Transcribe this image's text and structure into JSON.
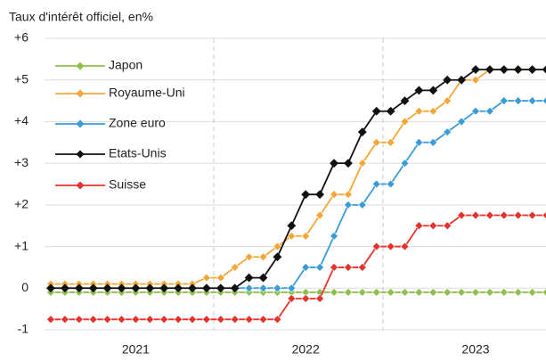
{
  "chart_data": {
    "type": "line",
    "title": "Taux d'intérêt officiel, en%",
    "categories": [
      null,
      null,
      null,
      null,
      null,
      null,
      "2021",
      null,
      null,
      null,
      null,
      null,
      null,
      null,
      null,
      null,
      null,
      null,
      "2022",
      null,
      null,
      null,
      null,
      null,
      null,
      null,
      null,
      null,
      null,
      null,
      "2023",
      null,
      null,
      null,
      null,
      null
    ],
    "ylim": [
      -1,
      6
    ],
    "yticks": [
      -1,
      0,
      {
        "value": 1,
        "label": "+1"
      },
      {
        "value": 2,
        "label": "+2"
      },
      {
        "value": 3,
        "label": "+3"
      },
      {
        "value": 4,
        "label": "+4"
      },
      {
        "value": 5,
        "label": "+5"
      },
      {
        "value": 6,
        "label": "+6"
      }
    ],
    "grid": true,
    "legend": "top-left",
    "series": [
      {
        "name": "Japon",
        "color": "#8fc04f",
        "values": [
          -0.1,
          -0.1,
          -0.1,
          -0.1,
          -0.1,
          -0.1,
          -0.1,
          -0.1,
          -0.1,
          -0.1,
          -0.1,
          -0.1,
          -0.1,
          -0.1,
          -0.1,
          -0.1,
          -0.1,
          -0.1,
          -0.1,
          -0.1,
          -0.1,
          -0.1,
          -0.1,
          -0.1,
          -0.1,
          -0.1,
          -0.1,
          -0.1,
          -0.1,
          -0.1,
          -0.1,
          -0.1,
          -0.1,
          -0.1,
          -0.1,
          -0.1
        ]
      },
      {
        "name": "Royaume-Uni",
        "color": "#f5a638",
        "values": [
          0.1,
          0.1,
          0.1,
          0.1,
          0.1,
          0.1,
          0.1,
          0.1,
          0.1,
          0.1,
          0.1,
          0.25,
          0.25,
          0.5,
          0.75,
          0.75,
          1.0,
          1.25,
          1.25,
          1.75,
          2.25,
          2.25,
          3.0,
          3.5,
          3.5,
          4.0,
          4.25,
          4.25,
          4.5,
          5.0,
          5.0,
          5.25,
          5.25,
          5.25,
          5.25,
          5.25
        ]
      },
      {
        "name": "Zone euro",
        "color": "#3a9bd8",
        "values": [
          0,
          0,
          0,
          0,
          0,
          0,
          0,
          0,
          0,
          0,
          0,
          0,
          0,
          0,
          0,
          0,
          0,
          0,
          0.5,
          0.5,
          1.25,
          2.0,
          2.0,
          2.5,
          2.5,
          3.0,
          3.5,
          3.5,
          3.75,
          4.0,
          4.25,
          4.25,
          4.5,
          4.5,
          4.5,
          4.5
        ]
      },
      {
        "name": "Etats-Unis",
        "color": "#111111",
        "values": [
          0,
          0,
          0,
          0,
          0,
          0,
          0,
          0,
          0,
          0,
          0,
          0,
          0,
          0,
          0.25,
          0.25,
          0.75,
          1.5,
          2.25,
          2.25,
          3.0,
          3.0,
          3.75,
          4.25,
          4.25,
          4.5,
          4.75,
          4.75,
          5.0,
          5.0,
          5.25,
          5.25,
          5.25,
          5.25,
          5.25,
          5.25
        ]
      },
      {
        "name": "Suisse",
        "color": "#e2342d",
        "values": [
          -0.75,
          -0.75,
          -0.75,
          -0.75,
          -0.75,
          -0.75,
          -0.75,
          -0.75,
          -0.75,
          -0.75,
          -0.75,
          -0.75,
          -0.75,
          -0.75,
          -0.75,
          -0.75,
          -0.75,
          -0.25,
          -0.25,
          -0.25,
          0.5,
          0.5,
          0.5,
          1.0,
          1.0,
          1.0,
          1.5,
          1.5,
          1.5,
          1.75,
          1.75,
          1.75,
          1.75,
          1.75,
          1.75,
          1.75
        ]
      }
    ]
  }
}
